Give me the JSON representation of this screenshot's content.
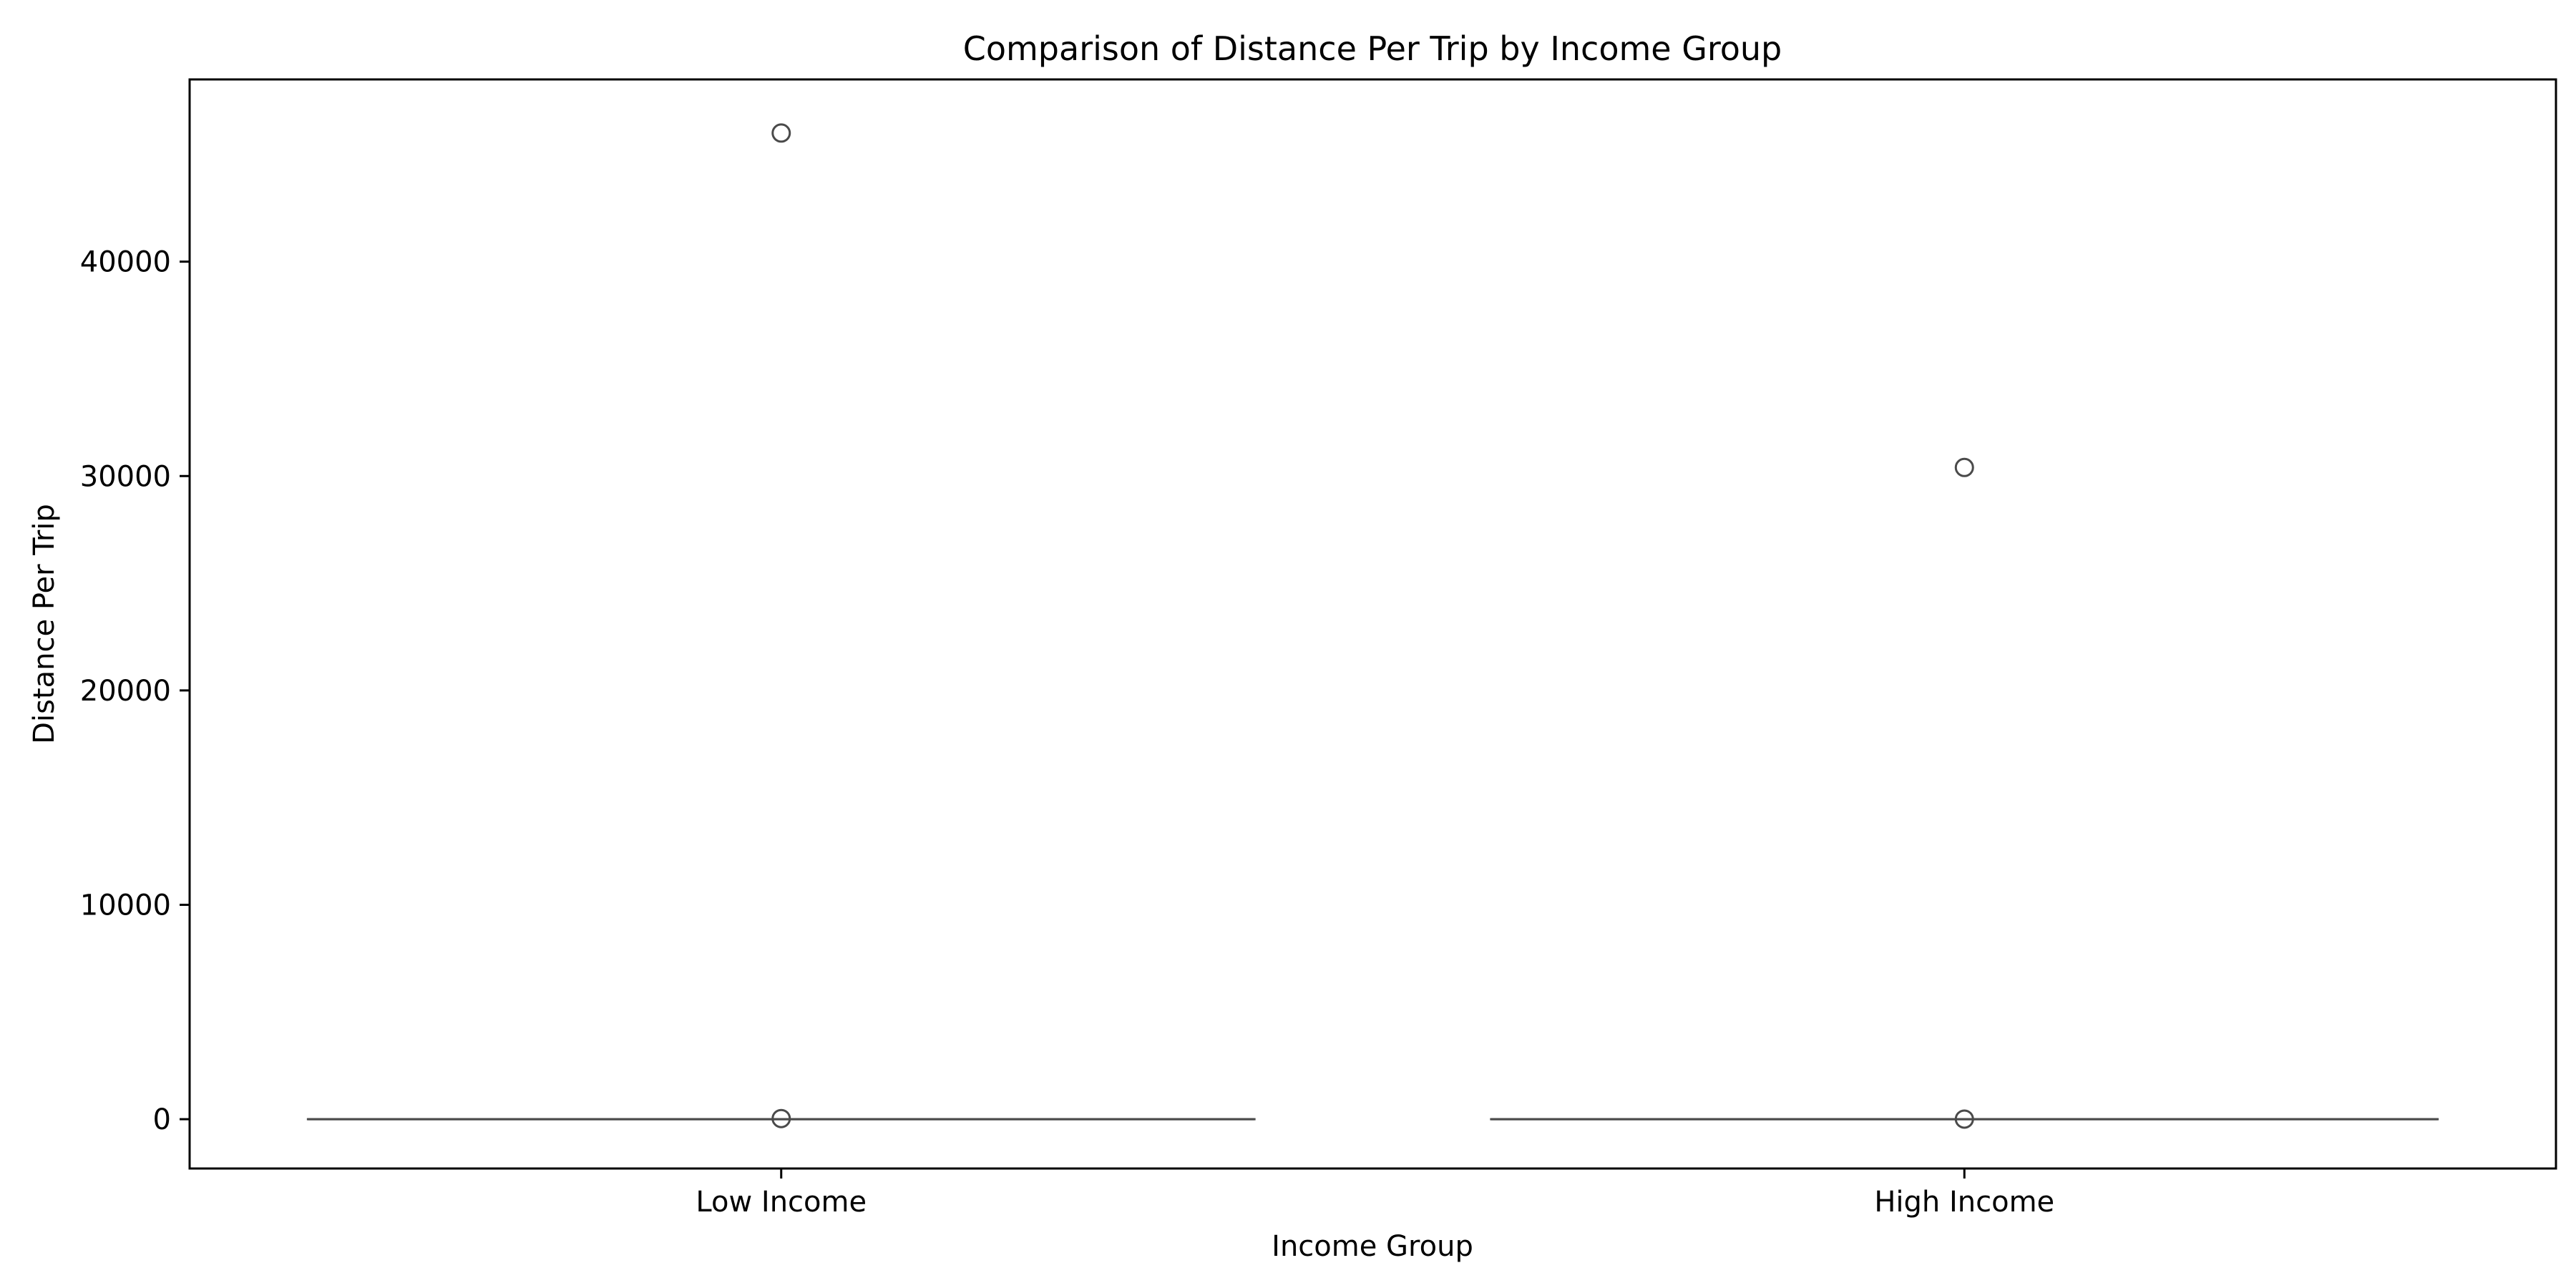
{
  "chart_data": {
    "type": "box",
    "title": "Comparison of Distance Per Trip by Income Group",
    "xlabel": "Income Group",
    "ylabel": "Distance Per Trip",
    "categories": [
      "Low Income",
      "High Income"
    ],
    "ylim": [
      -2300,
      48500
    ],
    "yticks": [
      0,
      10000,
      20000,
      30000,
      40000
    ],
    "ytick_labels": [
      "0",
      "10000",
      "20000",
      "30000",
      "40000"
    ],
    "grid": false,
    "legend": "none",
    "boxes": [
      {
        "category": "Low Income",
        "whisker_low": 0,
        "q1": 0,
        "median": 0,
        "q3": 0,
        "whisker_high": 0,
        "outliers": [
          46000,
          30
        ]
      },
      {
        "category": "High Income",
        "whisker_low": 0,
        "q1": 0,
        "median": 0,
        "q3": 0,
        "whisker_high": 0,
        "outliers": [
          30400,
          5
        ]
      }
    ],
    "colors": {
      "box_line": "#4a4a4a",
      "outlier_edge": "#4a4a4a",
      "axis": "#000000",
      "text": "#000000"
    }
  }
}
